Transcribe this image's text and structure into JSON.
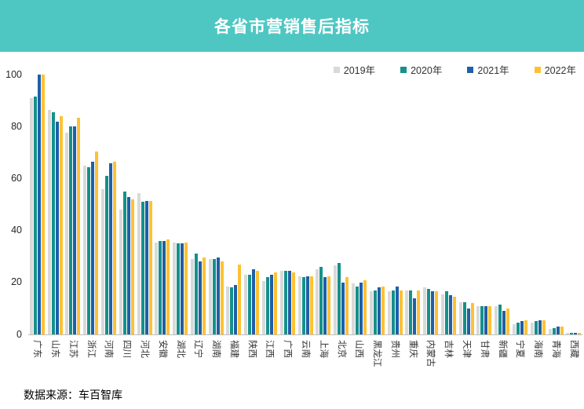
{
  "header": {
    "title": "各省市营销售后指标",
    "bg_color": "#4EC7C3",
    "text_color": "#FFFFFF"
  },
  "footer": {
    "source": "数据来源：车百智库"
  },
  "chart_data": {
    "type": "bar",
    "title": "各省市营销售后指标",
    "categories": [
      "广东",
      "山东",
      "江苏",
      "浙江",
      "河南",
      "四川",
      "河北",
      "安徽",
      "湖北",
      "辽宁",
      "湖南",
      "福建",
      "陕西",
      "江西",
      "广西",
      "云南",
      "上海",
      "北京",
      "山西",
      "黑龙江",
      "贵州",
      "重庆",
      "内蒙古",
      "吉林",
      "天津",
      "甘肃",
      "新疆",
      "宁夏",
      "海南",
      "青海",
      "西藏"
    ],
    "series": [
      {
        "name": "2019年",
        "color": "#D9D9D9",
        "values": [
          91,
          86.5,
          77.5,
          65,
          56,
          48,
          54.5,
          35.5,
          35.5,
          29,
          29,
          18.5,
          23,
          20.5,
          24.5,
          22.5,
          25,
          26.5,
          19.5,
          16.5,
          16.5,
          17,
          18,
          15.5,
          12.5,
          11,
          11,
          4,
          4.5,
          2,
          0.5
        ]
      },
      {
        "name": "2020年",
        "color": "#14918A",
        "values": [
          91.5,
          85.5,
          80,
          64.5,
          61,
          55,
          51,
          36,
          35,
          31,
          29,
          18,
          23,
          22,
          24.5,
          22,
          26,
          27.5,
          18.5,
          17,
          17,
          17,
          17.5,
          16.5,
          12.5,
          11,
          11.5,
          4.5,
          5,
          2.5,
          0.5
        ]
      },
      {
        "name": "2021年",
        "color": "#1F5FA7",
        "values": [
          100,
          82,
          80,
          66.5,
          66,
          53,
          51.5,
          36,
          35,
          28,
          29.5,
          19,
          25,
          23,
          24.5,
          22.5,
          22,
          20,
          20,
          18,
          18.5,
          14,
          16.5,
          15,
          10,
          11,
          9,
          5,
          5.5,
          3,
          0.5
        ]
      },
      {
        "name": "2022年",
        "color": "#FFC133",
        "values": [
          100,
          84,
          83.5,
          70.5,
          66.5,
          52,
          51.5,
          36.5,
          35.5,
          29.5,
          28,
          27,
          24.5,
          24,
          24,
          22.5,
          22.5,
          22,
          21,
          18.5,
          17,
          17,
          16.5,
          14.5,
          12,
          11,
          10,
          5.5,
          5.5,
          3,
          0.5
        ]
      }
    ],
    "xlabel": "",
    "ylabel": "",
    "ylim": [
      0,
      100
    ],
    "yticks": [
      0,
      20,
      40,
      60,
      80,
      100
    ],
    "grid": false,
    "legend_position": "top-right",
    "axis_line_color": "#BFBFBF"
  }
}
